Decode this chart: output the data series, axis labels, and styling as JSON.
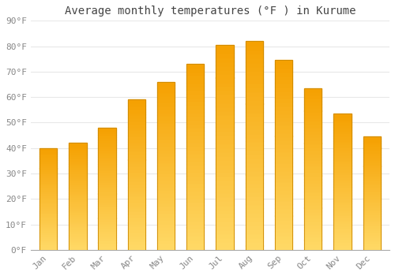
{
  "title": "Average monthly temperatures (°F ) in Kurume",
  "months": [
    "Jan",
    "Feb",
    "Mar",
    "Apr",
    "May",
    "Jun",
    "Jul",
    "Aug",
    "Sep",
    "Oct",
    "Nov",
    "Dec"
  ],
  "values": [
    40,
    42,
    48,
    59,
    66,
    73,
    80.5,
    82,
    74.5,
    63.5,
    53.5,
    44.5
  ],
  "bar_color_top": "#F5A000",
  "bar_color_bottom": "#FFD966",
  "bar_edge_color": "#CC8800",
  "background_color": "#FFFFFF",
  "grid_color": "#E8E8E8",
  "title_fontsize": 10,
  "tick_fontsize": 8,
  "ylim": [
    0,
    90
  ],
  "yticks": [
    0,
    10,
    20,
    30,
    40,
    50,
    60,
    70,
    80,
    90
  ]
}
